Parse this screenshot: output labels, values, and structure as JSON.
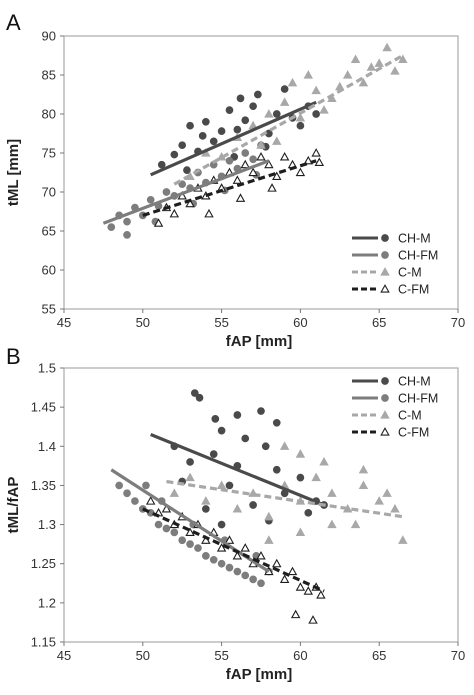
{
  "chart_data": [
    {
      "panel_label": "A",
      "type": "scatter",
      "xlabel": "fAP [mm]",
      "ylabel": "tML [mm]",
      "xlim": [
        45,
        70
      ],
      "ylim": [
        55,
        90
      ],
      "xticks": [
        "45",
        "50",
        "55",
        "60",
        "65",
        "70"
      ],
      "yticks": [
        "55",
        "60",
        "65",
        "70",
        "75",
        "80",
        "85",
        "90"
      ],
      "grid": false,
      "legend_position": "bottom-right",
      "series": [
        {
          "name": "CH-M",
          "marker": "filled-circle",
          "line": "solid",
          "color": "#4a4a4a",
          "trend": [
            [
              50.5,
              72.2
            ],
            [
              61,
              81.5
            ]
          ],
          "points": [
            [
              51.2,
              73.5
            ],
            [
              52,
              74.8
            ],
            [
              52.5,
              76
            ],
            [
              53,
              78.5
            ],
            [
              53.5,
              75.2
            ],
            [
              54,
              79
            ],
            [
              54.5,
              76.5
            ],
            [
              55,
              77.8
            ],
            [
              55.5,
              80.5
            ],
            [
              56,
              78
            ],
            [
              56.5,
              79.2
            ],
            [
              57,
              81
            ],
            [
              57.3,
              82.5
            ],
            [
              58,
              77.5
            ],
            [
              58.5,
              80
            ],
            [
              59,
              83.2
            ],
            [
              59.5,
              79.5
            ],
            [
              60,
              78.5
            ],
            [
              60.5,
              81
            ],
            [
              61,
              80
            ],
            [
              55.8,
              74.5
            ],
            [
              53.8,
              77.2
            ],
            [
              57.8,
              75.8
            ],
            [
              56.2,
              82
            ],
            [
              52.8,
              72.8
            ]
          ]
        },
        {
          "name": "CH-FM",
          "marker": "filled-circle",
          "line": "solid",
          "color": "#7d7d7d",
          "trend": [
            [
              47.5,
              66
            ],
            [
              58,
              74
            ]
          ],
          "points": [
            [
              48,
              65.5
            ],
            [
              48.5,
              67
            ],
            [
              49,
              66.2
            ],
            [
              49.5,
              68
            ],
            [
              50,
              67
            ],
            [
              50.5,
              69
            ],
            [
              51,
              68.2
            ],
            [
              51.5,
              70
            ],
            [
              52,
              69.5
            ],
            [
              52.5,
              71
            ],
            [
              53,
              70.5
            ],
            [
              53.5,
              72.5
            ],
            [
              54,
              71.2
            ],
            [
              54.5,
              73.5
            ],
            [
              55,
              72
            ],
            [
              55.5,
              74
            ],
            [
              56,
              73
            ],
            [
              56.5,
              75
            ],
            [
              57,
              74.2
            ],
            [
              57.5,
              76
            ],
            [
              49,
              64.5
            ],
            [
              50.8,
              66.2
            ],
            [
              53.2,
              68.5
            ],
            [
              55.2,
              70.2
            ],
            [
              57.2,
              72.2
            ]
          ]
        },
        {
          "name": "C-M",
          "marker": "filled-triangle",
          "line": "dashed",
          "color": "#a8a8a8",
          "trend": [
            [
              52,
              71
            ],
            [
              66.5,
              87.5
            ]
          ],
          "points": [
            [
              53,
              72
            ],
            [
              54,
              75
            ],
            [
              55,
              74.5
            ],
            [
              56,
              77
            ],
            [
              57,
              78.5
            ],
            [
              58,
              80
            ],
            [
              59,
              81.5
            ],
            [
              60,
              79.5
            ],
            [
              61,
              83
            ],
            [
              62,
              82
            ],
            [
              63,
              85
            ],
            [
              64,
              84
            ],
            [
              65,
              86.5
            ],
            [
              65.5,
              88.5
            ],
            [
              66,
              85.5
            ],
            [
              66.5,
              87
            ],
            [
              60.5,
              85
            ],
            [
              61.5,
              80.5
            ],
            [
              62.5,
              83.5
            ],
            [
              63.5,
              87
            ],
            [
              58.5,
              76.5
            ],
            [
              59.5,
              84
            ],
            [
              57.5,
              76
            ],
            [
              55.5,
              72.5
            ],
            [
              64.5,
              86
            ]
          ]
        },
        {
          "name": "C-FM",
          "marker": "open-triangle",
          "line": "dashed",
          "color": "#1e1e1e",
          "trend": [
            [
              50,
              67
            ],
            [
              61,
              74
            ]
          ],
          "points": [
            [
              51,
              66
            ],
            [
              51.5,
              68
            ],
            [
              52,
              67.2
            ],
            [
              52.5,
              69.5
            ],
            [
              53,
              68.5
            ],
            [
              53.5,
              70.5
            ],
            [
              54,
              69.5
            ],
            [
              54.5,
              71.5
            ],
            [
              55,
              70.5
            ],
            [
              55.5,
              72.5
            ],
            [
              56,
              71.5
            ],
            [
              56.5,
              73.5
            ],
            [
              57,
              72.5
            ],
            [
              57.5,
              74.5
            ],
            [
              58,
              73.5
            ],
            [
              58.5,
              72
            ],
            [
              59,
              74.5
            ],
            [
              59.5,
              73.5
            ],
            [
              60,
              72.5
            ],
            [
              60.5,
              74
            ],
            [
              61,
              75
            ],
            [
              61.2,
              73.8
            ],
            [
              54.2,
              67.2
            ],
            [
              56.2,
              69.2
            ],
            [
              58.2,
              70.5
            ]
          ]
        }
      ]
    },
    {
      "panel_label": "B",
      "type": "scatter",
      "xlabel": "fAP [mm]",
      "ylabel": "tML/fAP",
      "xlim": [
        45,
        70
      ],
      "ylim": [
        1.15,
        1.5
      ],
      "xticks": [
        "45",
        "50",
        "55",
        "60",
        "65",
        "70"
      ],
      "yticks": [
        "1.15",
        "1.2",
        "1.25",
        "1.3",
        "1.35",
        "1.4",
        "1.45",
        "1.5"
      ],
      "grid": false,
      "legend_position": "top-right",
      "series": [
        {
          "name": "CH-M",
          "marker": "filled-circle",
          "line": "solid",
          "color": "#4a4a4a",
          "trend": [
            [
              50.5,
              1.415
            ],
            [
              61.5,
              1.325
            ]
          ],
          "points": [
            [
              53.3,
              1.468
            ],
            [
              53.6,
              1.462
            ],
            [
              54.6,
              1.435
            ],
            [
              56,
              1.44
            ],
            [
              57.5,
              1.445
            ],
            [
              58.5,
              1.43
            ],
            [
              55,
              1.42
            ],
            [
              52,
              1.4
            ],
            [
              56.5,
              1.41
            ],
            [
              57.8,
              1.4
            ],
            [
              54.5,
              1.39
            ],
            [
              53,
              1.38
            ],
            [
              56,
              1.375
            ],
            [
              58.5,
              1.37
            ],
            [
              60,
              1.36
            ],
            [
              52.5,
              1.355
            ],
            [
              55.5,
              1.35
            ],
            [
              59,
              1.34
            ],
            [
              61,
              1.33
            ],
            [
              57,
              1.325
            ],
            [
              54,
              1.32
            ],
            [
              60.5,
              1.315
            ],
            [
              58,
              1.305
            ],
            [
              55,
              1.3
            ],
            [
              61.5,
              1.325
            ]
          ]
        },
        {
          "name": "CH-FM",
          "marker": "filled-circle",
          "line": "solid",
          "color": "#7d7d7d",
          "trend": [
            [
              48,
              1.37
            ],
            [
              58,
              1.24
            ]
          ],
          "points": [
            [
              48.5,
              1.35
            ],
            [
              49,
              1.34
            ],
            [
              49.5,
              1.33
            ],
            [
              50,
              1.32
            ],
            [
              50.5,
              1.315
            ],
            [
              51,
              1.3
            ],
            [
              51.5,
              1.295
            ],
            [
              52,
              1.29
            ],
            [
              52.5,
              1.28
            ],
            [
              53,
              1.275
            ],
            [
              53.5,
              1.27
            ],
            [
              54,
              1.26
            ],
            [
              54.5,
              1.255
            ],
            [
              55,
              1.25
            ],
            [
              55.5,
              1.245
            ],
            [
              56,
              1.24
            ],
            [
              56.5,
              1.235
            ],
            [
              57,
              1.23
            ],
            [
              57.5,
              1.225
            ],
            [
              58,
              1.24
            ],
            [
              50.2,
              1.35
            ],
            [
              51.2,
              1.33
            ],
            [
              53.2,
              1.3
            ],
            [
              55.2,
              1.28
            ],
            [
              57.2,
              1.26
            ]
          ]
        },
        {
          "name": "C-M",
          "marker": "filled-triangle",
          "line": "dashed",
          "color": "#a8a8a8",
          "trend": [
            [
              51.5,
              1.355
            ],
            [
              66.5,
              1.31
            ]
          ],
          "points": [
            [
              52,
              1.34
            ],
            [
              53,
              1.36
            ],
            [
              54,
              1.33
            ],
            [
              55,
              1.35
            ],
            [
              56,
              1.32
            ],
            [
              57,
              1.34
            ],
            [
              58,
              1.31
            ],
            [
              59,
              1.35
            ],
            [
              60,
              1.33
            ],
            [
              61,
              1.36
            ],
            [
              62,
              1.34
            ],
            [
              63,
              1.32
            ],
            [
              64,
              1.35
            ],
            [
              65,
              1.33
            ],
            [
              66,
              1.32
            ],
            [
              66.5,
              1.28
            ],
            [
              59,
              1.4
            ],
            [
              60,
              1.39
            ],
            [
              61.5,
              1.38
            ],
            [
              64,
              1.37
            ],
            [
              58,
              1.28
            ],
            [
              60,
              1.29
            ],
            [
              62,
              1.3
            ],
            [
              63.5,
              1.3
            ],
            [
              65.5,
              1.34
            ]
          ]
        },
        {
          "name": "C-FM",
          "marker": "open-triangle",
          "line": "dashed",
          "color": "#1e1e1e",
          "trend": [
            [
              50,
              1.32
            ],
            [
              61.5,
              1.215
            ]
          ],
          "points": [
            [
              50.5,
              1.33
            ],
            [
              51,
              1.315
            ],
            [
              51.5,
              1.32
            ],
            [
              52,
              1.3
            ],
            [
              52.5,
              1.31
            ],
            [
              53,
              1.29
            ],
            [
              53.5,
              1.3
            ],
            [
              54,
              1.28
            ],
            [
              54.5,
              1.29
            ],
            [
              55,
              1.27
            ],
            [
              55.5,
              1.28
            ],
            [
              56,
              1.26
            ],
            [
              56.5,
              1.27
            ],
            [
              57,
              1.25
            ],
            [
              57.5,
              1.26
            ],
            [
              58,
              1.24
            ],
            [
              58.5,
              1.25
            ],
            [
              59,
              1.23
            ],
            [
              59.5,
              1.24
            ],
            [
              60,
              1.22
            ],
            [
              60.5,
              1.215
            ],
            [
              61,
              1.22
            ],
            [
              61.3,
              1.21
            ],
            [
              59.7,
              1.185
            ],
            [
              60.8,
              1.178
            ]
          ]
        }
      ]
    }
  ]
}
